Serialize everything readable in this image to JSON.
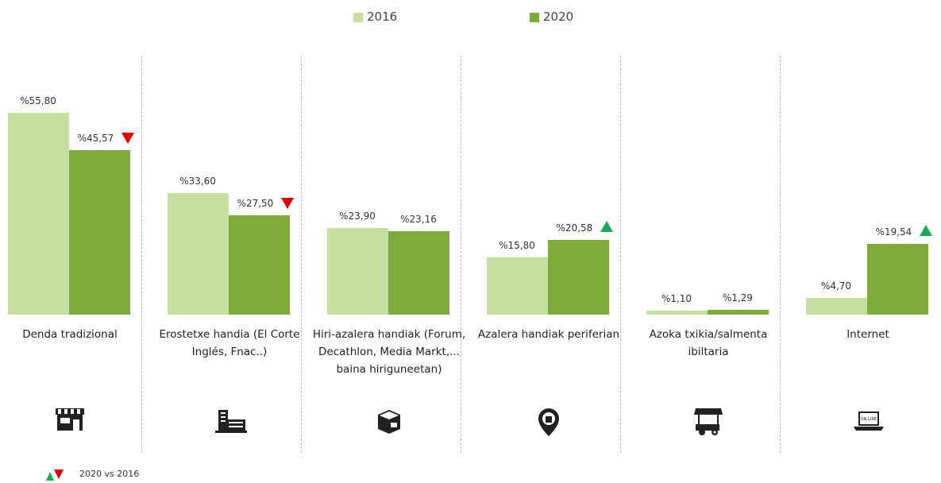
{
  "chart_data": {
    "type": "bar",
    "categories": [
      "Denda tradizional",
      "Erostetxe handia (El Corte Inglés, Fnac..)",
      "Hiri-azalera handiak (Forum, Decathlon, Media Markt,... baina hiriguneetan)",
      "Azalera handiak periferian",
      "Azoka txikia/salmenta ibiltaria",
      "Internet"
    ],
    "series": [
      {
        "name": "2016",
        "color": "#c5dfa0",
        "values": [
          55.8,
          33.6,
          23.9,
          15.8,
          1.1,
          4.7
        ],
        "value_labels": [
          "%55,80",
          "%33,60",
          "%23,90",
          "%15,80",
          "%1,10",
          "%4,70"
        ]
      },
      {
        "name": "2020",
        "color": "#7faa3c",
        "values": [
          45.57,
          27.5,
          23.16,
          20.58,
          1.29,
          19.54
        ],
        "value_labels": [
          "%45,57",
          "%27,50",
          "%23,16",
          "%20,58",
          "%1,29",
          "%19,54"
        ]
      }
    ],
    "change_markers": [
      "down",
      "down",
      null,
      "up",
      null,
      "up"
    ],
    "note": "2020 vs 2016"
  }
}
